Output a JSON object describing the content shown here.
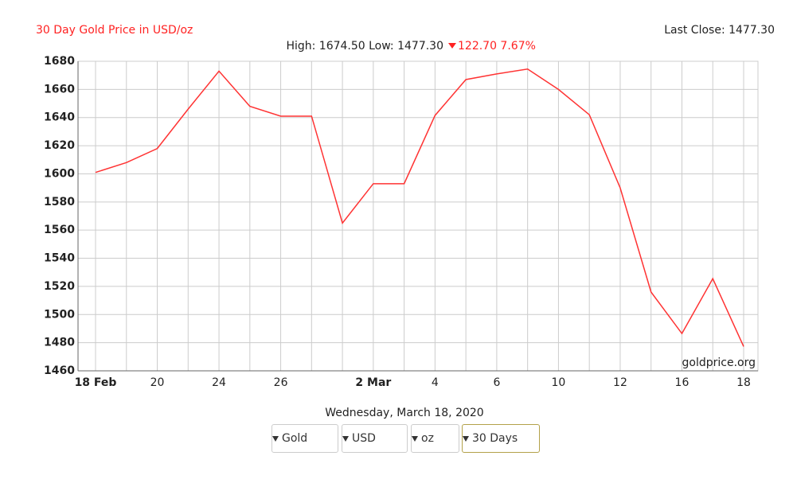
{
  "chart_data": {
    "type": "line",
    "title": "30 Day Gold Price in USD/oz",
    "last_close": "Last Close: 1477.30",
    "high_low": "High: 1674.50 Low: 1477.30",
    "change": "122.70 7.67%",
    "watermark": "goldprice.org",
    "date": "Wednesday, March 18, 2020",
    "categories": [
      "18 Feb",
      null,
      "20",
      null,
      "24",
      null,
      "26",
      null,
      null,
      "2 Mar",
      null,
      "4",
      null,
      "6",
      null,
      "10",
      null,
      "12",
      null,
      "16",
      null,
      "18"
    ],
    "values": [
      1601,
      1608,
      1618,
      1646,
      1673,
      1648,
      1641,
      1641,
      1565,
      1593,
      1593,
      1641.5,
      1667,
      1671,
      1674.5,
      1660,
      1642,
      1590,
      1516,
      1486.5,
      1525.5,
      1477.3
    ],
    "color": "#ff3333",
    "ylim": [
      1460,
      1680
    ],
    "yticks": [
      1460,
      1480,
      1500,
      1520,
      1540,
      1560,
      1580,
      1600,
      1620,
      1640,
      1660,
      1680
    ],
    "grid": true
  },
  "controls": [
    "Gold",
    "USD",
    "oz",
    "30 Days"
  ]
}
